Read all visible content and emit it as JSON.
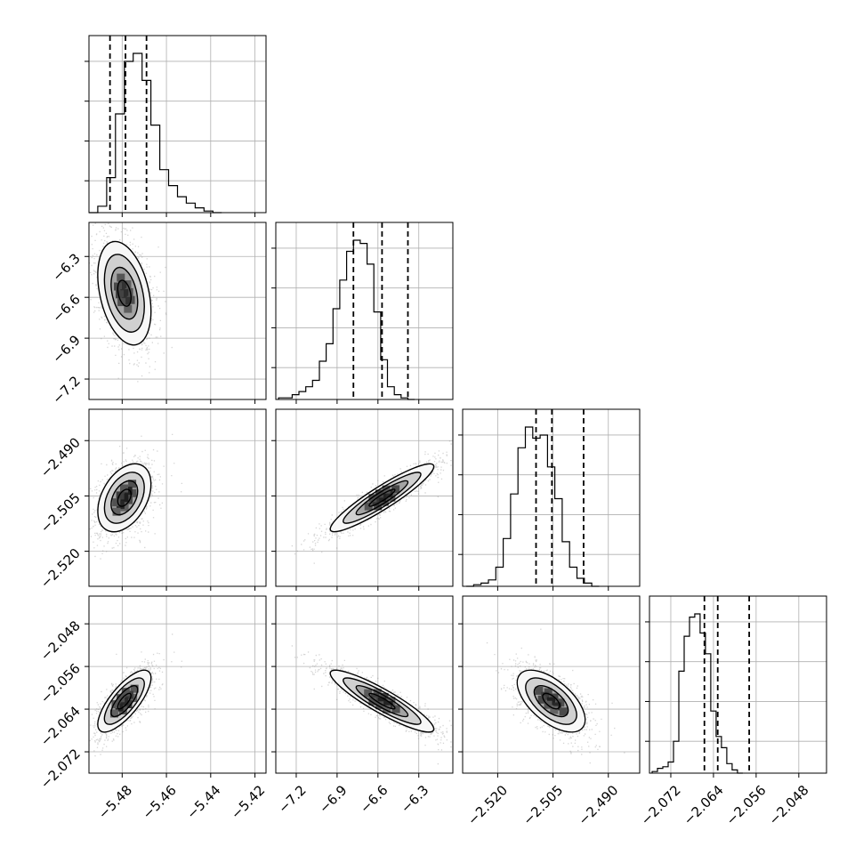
{
  "chart_data": {
    "type": "corner",
    "parameters": [
      {
        "range": [
          -5.495,
          -5.415
        ],
        "ticks": [
          -5.48,
          -5.46,
          -5.44,
          -5.42
        ],
        "tick_labels": [
          "−5.48",
          "−5.46",
          "−5.44",
          "−5.42"
        ]
      },
      {
        "range": [
          -7.35,
          -6.05
        ],
        "ticks": [
          -7.2,
          -6.9,
          -6.6,
          -6.3
        ],
        "tick_labels": [
          "−7.2",
          "−6.9",
          "−6.6",
          "−6.3"
        ]
      },
      {
        "range": [
          -2.5295,
          -2.4815
        ],
        "ticks": [
          -2.52,
          -2.505,
          -2.49
        ],
        "tick_labels": [
          "−2.520",
          "−2.505",
          "−2.490"
        ]
      },
      {
        "range": [
          -2.076,
          -2.0428
        ],
        "ticks": [
          -2.072,
          -2.064,
          -2.056,
          -2.048
        ],
        "tick_labels": [
          "−2.072",
          "−2.064",
          "−2.056",
          "−2.048"
        ]
      }
    ],
    "quantiles": [
      [
        -5.4855,
        -5.4785,
        -5.469
      ],
      [
        -6.78,
        -6.57,
        -6.38
      ],
      [
        -2.5096,
        -2.5053,
        -2.4967
      ],
      [
        -2.0657,
        -2.0632,
        -2.0573
      ]
    ],
    "histograms": [
      {
        "edges_start": -5.495,
        "bin_width": 0.004,
        "counts": [
          0.0,
          0.04,
          0.22,
          0.62,
          0.95,
          1.0,
          0.83,
          0.55,
          0.27,
          0.17,
          0.1,
          0.06,
          0.03,
          0.01,
          0.0
        ]
      },
      {
        "edges_start": -7.33,
        "bin_width": 0.05,
        "counts": [
          0.01,
          0.01,
          0.03,
          0.05,
          0.08,
          0.12,
          0.24,
          0.35,
          0.57,
          0.75,
          0.93,
          1.0,
          0.98,
          0.85,
          0.55,
          0.25,
          0.08,
          0.03,
          0.01,
          0.0
        ]
      },
      {
        "edges_start": -2.5285,
        "bin_width": 0.002,
        "counts": [
          0.0,
          0.01,
          0.02,
          0.04,
          0.12,
          0.3,
          0.58,
          0.87,
          1.0,
          0.93,
          0.95,
          0.75,
          0.55,
          0.28,
          0.12,
          0.05,
          0.02,
          0.0
        ]
      },
      {
        "edges_start": -2.0755,
        "bin_width": 0.001,
        "counts": [
          0.01,
          0.03,
          0.04,
          0.07,
          0.2,
          0.64,
          0.86,
          0.98,
          1.0,
          0.88,
          0.75,
          0.39,
          0.23,
          0.16,
          0.06,
          0.02,
          0.0
        ]
      }
    ],
    "pairs": [
      {
        "x": 0,
        "y": 1,
        "mean": [
          -5.479,
          -6.57
        ],
        "sd": [
          0.006,
          0.19
        ],
        "rho": -0.35
      },
      {
        "x": 0,
        "y": 2,
        "mean": [
          -5.479,
          -2.5055
        ],
        "sd": [
          0.006,
          0.0046
        ],
        "rho": 0.4
      },
      {
        "x": 1,
        "y": 2,
        "mean": [
          -6.57,
          -2.5055
        ],
        "sd": [
          0.19,
          0.0046
        ],
        "rho": 0.92
      },
      {
        "x": 0,
        "y": 3,
        "mean": [
          -5.479,
          -2.0625
        ],
        "sd": [
          0.006,
          0.0029
        ],
        "rho": 0.75
      },
      {
        "x": 1,
        "y": 3,
        "mean": [
          -6.57,
          -2.0625
        ],
        "sd": [
          0.19,
          0.0029
        ],
        "rho": -0.9
      },
      {
        "x": 2,
        "y": 3,
        "mean": [
          -2.5055,
          -2.0625
        ],
        "sd": [
          0.0046,
          0.0029
        ],
        "rho": -0.6
      }
    ],
    "contour_levels_sigma": [
      0.5,
      1.0,
      1.5,
      2.0
    ],
    "grid": true,
    "colors": {
      "frame": "#000000",
      "grid": "#b0b0b0",
      "points": "#888888",
      "contour": "#000000"
    }
  }
}
